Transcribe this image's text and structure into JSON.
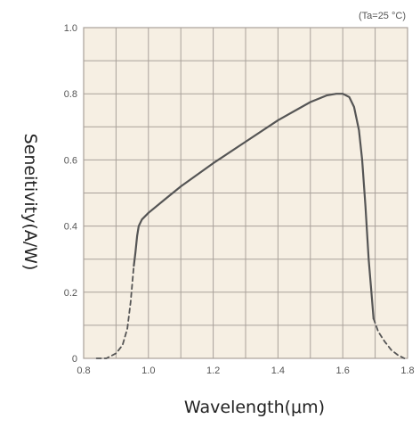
{
  "chart_data": {
    "type": "line",
    "title": "",
    "annotation": "(Ta=25 °C)",
    "xlabel": "Wavelength(μm)",
    "ylabel": "Seneitivity(A/W)",
    "xlim": [
      0.8,
      1.8
    ],
    "ylim": [
      0,
      1.0
    ],
    "x_ticks": [
      "0.8",
      "1.0",
      "1.2",
      "1.4",
      "1.6",
      "1.8"
    ],
    "y_ticks": [
      "0",
      "0.2",
      "0.4",
      "0.6",
      "0.8",
      "1.0"
    ],
    "grid": true,
    "series": [
      {
        "style": "solid",
        "x": [
          0.955,
          0.96,
          0.965,
          0.97,
          0.98,
          1.0,
          1.05,
          1.1,
          1.2,
          1.3,
          1.4,
          1.5,
          1.55,
          1.58,
          1.6,
          1.62,
          1.635,
          1.65,
          1.66,
          1.67,
          1.68,
          1.69,
          1.695
        ],
        "y": [
          0.28,
          0.32,
          0.37,
          0.4,
          0.42,
          0.44,
          0.48,
          0.52,
          0.59,
          0.655,
          0.72,
          0.775,
          0.795,
          0.8,
          0.8,
          0.79,
          0.76,
          0.69,
          0.6,
          0.46,
          0.3,
          0.18,
          0.12
        ]
      },
      {
        "style": "dashed",
        "x": [
          0.84,
          0.87,
          0.9,
          0.92,
          0.935,
          0.945,
          0.955
        ],
        "y": [
          0.0,
          0.0,
          0.015,
          0.04,
          0.09,
          0.17,
          0.28
        ]
      },
      {
        "style": "dashed",
        "x": [
          1.695,
          1.71,
          1.73,
          1.75,
          1.77,
          1.79
        ],
        "y": [
          0.12,
          0.08,
          0.05,
          0.025,
          0.01,
          0.0
        ]
      }
    ],
    "colors": {
      "plot_background": "#f6efe3",
      "grid": "#a9a19a",
      "line": "#555555"
    }
  }
}
